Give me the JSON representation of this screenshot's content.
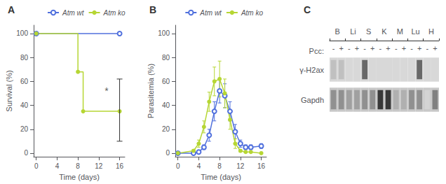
{
  "chart_data": [
    {
      "type": "step",
      "title": "A",
      "xlabel": "Time (days)",
      "ylabel": "Survival (%)",
      "xlim": [
        -0.5,
        17
      ],
      "xticks": [
        0,
        4,
        8,
        12,
        16
      ],
      "ylim": [
        -3,
        107
      ],
      "yticks": [
        0,
        20,
        40,
        60,
        80,
        100
      ],
      "grid": false,
      "legend": "upper left",
      "series": [
        {
          "name": "Atm wt",
          "marker": "circle_open",
          "x": [
            0,
            16
          ],
          "values": [
            100,
            100
          ]
        },
        {
          "name": "Atm ko",
          "marker": "circle",
          "x": [
            0,
            8,
            9,
            16
          ],
          "values": [
            100,
            68,
            35,
            35
          ]
        }
      ],
      "error_bars": [
        {
          "x": 16,
          "low": 10,
          "high": 62
        }
      ],
      "annotations": [
        {
          "text": "*",
          "x": 13.5,
          "y": 52
        }
      ]
    },
    {
      "type": "line",
      "title": "B",
      "xlabel": "Time (days)",
      "ylabel": "Parasitemia (%)",
      "xlim": [
        -0.5,
        17
      ],
      "xticks": [
        0,
        4,
        8,
        12,
        16
      ],
      "ylim": [
        -3,
        107
      ],
      "yticks": [
        0,
        20,
        40,
        60,
        80,
        100
      ],
      "grid": false,
      "legend": "upper right",
      "series": [
        {
          "name": "Atm wt",
          "marker": "circle_open",
          "x": [
            0,
            3,
            4,
            5,
            6,
            7,
            8,
            9,
            10,
            11,
            12,
            13,
            14,
            16
          ],
          "values": [
            0,
            0,
            1,
            5,
            15,
            35,
            52,
            48,
            35,
            18,
            8,
            5,
            5,
            6
          ],
          "error": [
            0,
            0,
            1,
            2,
            5,
            8,
            10,
            10,
            8,
            6,
            3,
            2,
            2,
            2
          ]
        },
        {
          "name": "Atm ko",
          "marker": "circle",
          "x": [
            0,
            3,
            4,
            5,
            6,
            7,
            8,
            9,
            10,
            11,
            12,
            13,
            14,
            16
          ],
          "values": [
            0,
            2,
            8,
            22,
            43,
            60,
            62,
            50,
            28,
            8,
            2,
            1,
            1,
            0
          ],
          "error": [
            0,
            1,
            3,
            5,
            8,
            12,
            15,
            12,
            8,
            4,
            1,
            0.5,
            0.5,
            0.5
          ]
        }
      ]
    },
    {
      "type": "blot",
      "title": "C",
      "xlabel": "Pcc:",
      "groups": [
        "B",
        "Li",
        "S",
        "K",
        "M",
        "Lu",
        "H"
      ],
      "categories": [
        "-",
        "+",
        "-",
        "+",
        "-",
        "+",
        "-",
        "+",
        "-",
        "+",
        "-",
        "+",
        "-",
        "+"
      ],
      "series": [
        {
          "name": "γ-H2ax",
          "color": "#d8d8d8",
          "colors": [
            "#c0c0c0",
            "#c0c0c0",
            null,
            null,
            "#686868",
            null,
            null,
            null,
            null,
            null,
            null,
            "#686868",
            null,
            null
          ]
        },
        {
          "name": "Gapdh",
          "color": "#c8c8c8",
          "colors": [
            "#909090",
            "#909090",
            "#a0a0a0",
            "#a0a0a0",
            "#909090",
            "#909090",
            "#383838",
            "#383838",
            "#b0b0b0",
            "#b0b0b0",
            "#909090",
            "#909090",
            "#d4d4d4",
            "#808080"
          ]
        }
      ]
    }
  ]
}
